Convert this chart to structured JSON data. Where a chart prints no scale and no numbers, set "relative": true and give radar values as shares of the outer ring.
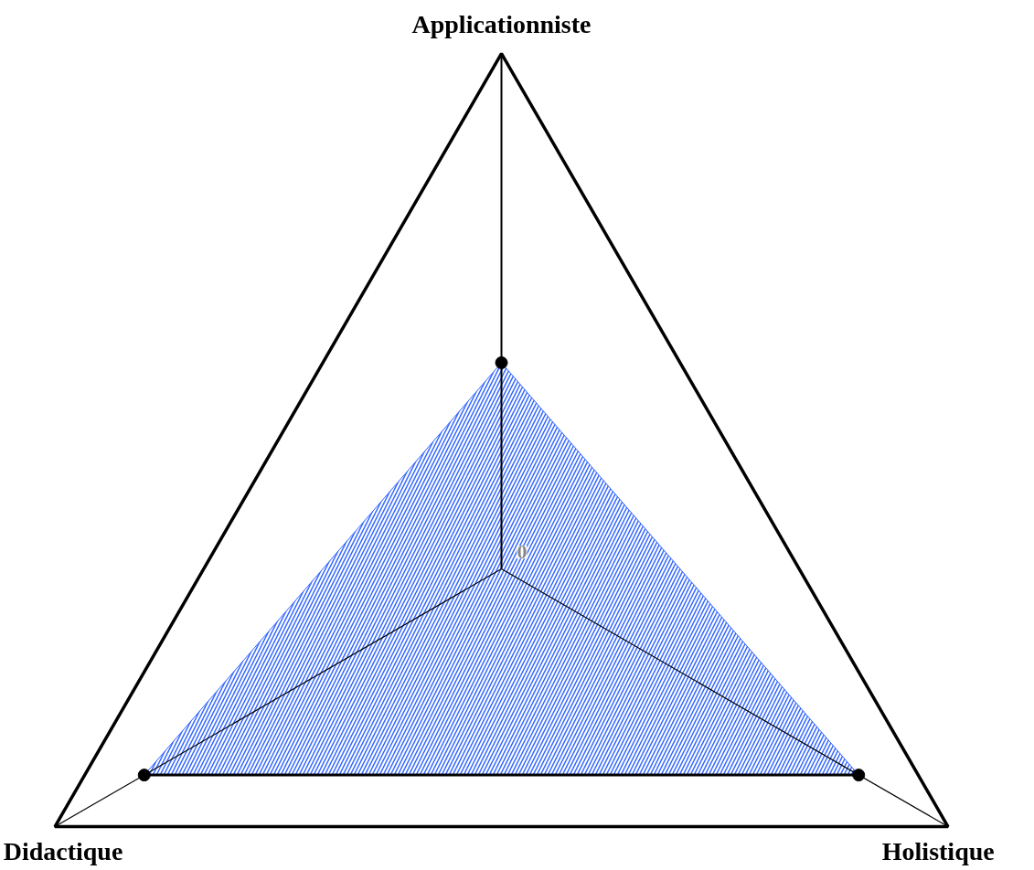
{
  "chart_data": {
    "type": "radar",
    "relative": true,
    "marker": "circle",
    "categories": [
      "Applicationniste",
      "Holistique",
      "Didactique"
    ],
    "annotations": [
      {
        "text": "0"
      }
    ],
    "series": [
      {
        "color": "#3366ff",
        "values": [
          0.4,
          0.8,
          0.8
        ]
      }
    ]
  }
}
